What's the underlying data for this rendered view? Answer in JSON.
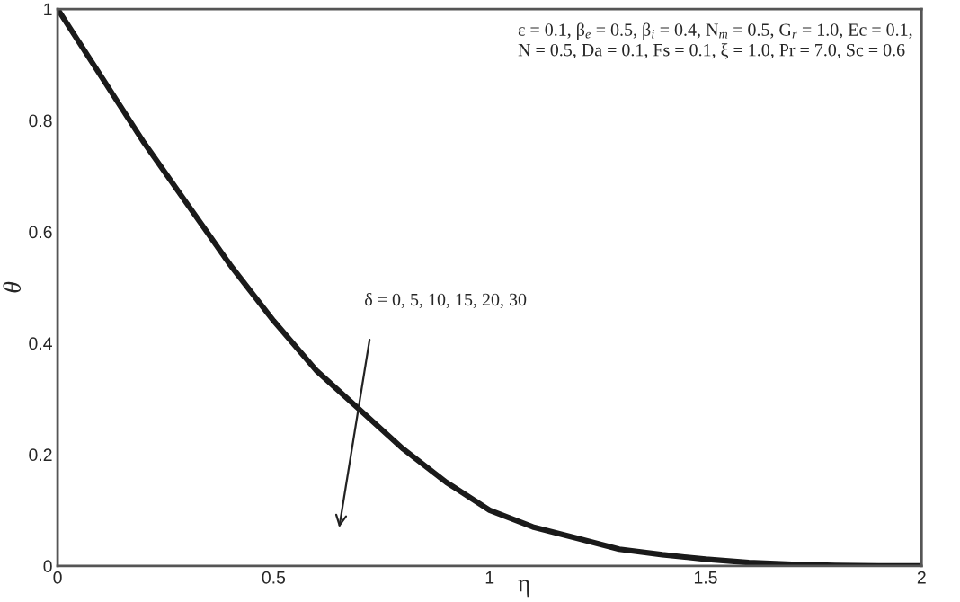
{
  "chart_data": {
    "type": "line",
    "xlabel": "η",
    "ylabel": "θ",
    "x": [
      0,
      0.1,
      0.2,
      0.3,
      0.4,
      0.5,
      0.6,
      0.7,
      0.8,
      0.9,
      1.0,
      1.1,
      1.2,
      1.3,
      1.4,
      1.5,
      1.6,
      1.7,
      1.8,
      1.9,
      2.0
    ],
    "series": [
      {
        "color": "#1a1a1a",
        "values": [
          1,
          0.88,
          0.76,
          0.65,
          0.54,
          0.44,
          0.35,
          0.28,
          0.21,
          0.15,
          0.1,
          0.07,
          0.05,
          0.03,
          0.02,
          0.012,
          0.006,
          0.003,
          0.001,
          0,
          0
        ]
      }
    ],
    "xlim": [
      0,
      2
    ],
    "ylim": [
      0,
      1
    ],
    "xticks": [
      0,
      0.5,
      1,
      1.5,
      2
    ],
    "yticks": [
      0,
      0.2,
      0.4,
      0.6,
      0.8,
      1
    ],
    "annotations": [
      "ε = 0.1, β$_{e}$ = 0.5, β$_{i}$ = 0.4, N$_{m}$ = 0.5, G$_{r}$ = 1.0, Ec = 0.1,\nN = 0.5, Da = 0.1, Fs = 0.1, ξ = 1.0, Pr = 7.0, Sc = 0.6",
      "δ = 0, 5, 10, 15, 20, 30"
    ],
    "grid": false,
    "legend": false,
    "marker": "none",
    "line_style": "solid"
  }
}
